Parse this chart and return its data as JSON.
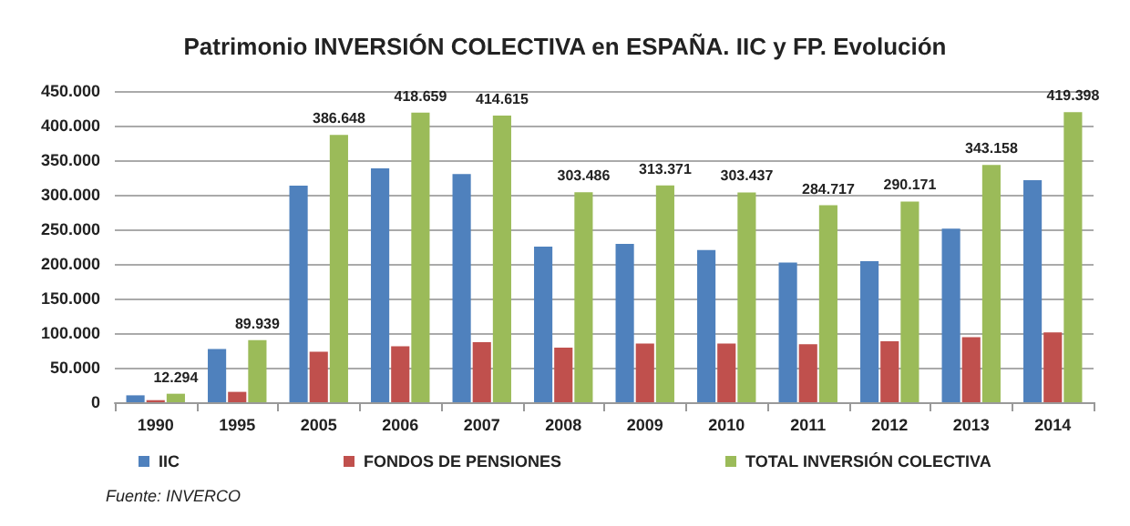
{
  "chart_data": {
    "type": "bar",
    "title": "Patrimonio INVERSIÓN COLECTIVA en ESPAÑA. IIC y FP. Evolución",
    "categories": [
      "1990",
      "1995",
      "2005",
      "2006",
      "2007",
      "2008",
      "2009",
      "2010",
      "2011",
      "2012",
      "2013",
      "2014"
    ],
    "series": [
      {
        "name": "IIC",
        "color": "#4f81bd",
        "values": [
          10000,
          77000,
          313000,
          338000,
          330000,
          225000,
          229000,
          220000,
          202000,
          204000,
          251000,
          321000
        ]
      },
      {
        "name": "FONDOS DE PENSIONES",
        "color": "#c0504d",
        "values": [
          3000,
          15000,
          73000,
          81000,
          87000,
          79000,
          85000,
          85000,
          84000,
          88000,
          94000,
          101000
        ]
      },
      {
        "name": "TOTAL INVERSIÓN COLECTIVA",
        "color": "#9bbb59",
        "values": [
          12294,
          89939,
          386648,
          418659,
          414615,
          303486,
          313371,
          303437,
          284717,
          290171,
          343158,
          419398
        ],
        "value_labels": [
          "12.294",
          "89.939",
          "386.648",
          "418.659",
          "414.615",
          "303.486",
          "313.371",
          "303.437",
          "284.717",
          "290.171",
          "343.158",
          "419.398"
        ]
      }
    ],
    "ylim": [
      0,
      450000
    ],
    "yticks": [
      {
        "value": 0,
        "label": "0"
      },
      {
        "value": 50000,
        "label": "50.000"
      },
      {
        "value": 100000,
        "label": "100.000"
      },
      {
        "value": 150000,
        "label": "150.000"
      },
      {
        "value": 200000,
        "label": "200.000"
      },
      {
        "value": 250000,
        "label": "250.000"
      },
      {
        "value": 300000,
        "label": "300.000"
      },
      {
        "value": 350000,
        "label": "350.000"
      },
      {
        "value": 400000,
        "label": "400.000"
      },
      {
        "value": 450000,
        "label": "450.000"
      }
    ],
    "grid": "y",
    "legend": "bottom",
    "annotations": [
      "Fuente: INVERCO"
    ]
  }
}
